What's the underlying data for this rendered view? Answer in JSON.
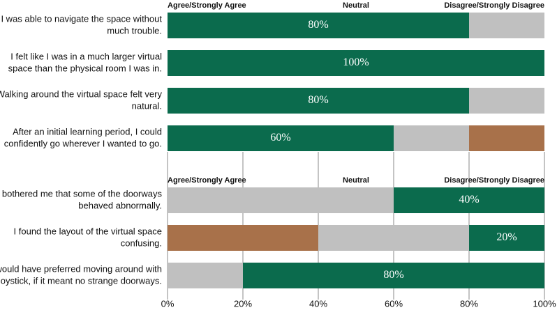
{
  "chart_data": [
    {
      "type": "bar",
      "orientation": "horizontal",
      "stacked": true,
      "categories": [
        [
          "I was able to navigate the space without",
          "much trouble."
        ],
        [
          "I felt like I was in a much larger virtual",
          "space than the physical room I was in."
        ],
        [
          "Walking around the virtual space felt very",
          "natural."
        ],
        [
          "After an initial learning period, I could",
          "confidently go wherever I wanted to go."
        ]
      ],
      "series": [
        {
          "name": "Agree/Strongly Agree",
          "color": "#0b6b4d",
          "values": [
            80,
            100,
            80,
            60
          ],
          "value_labels": [
            "80%",
            "100%",
            "80%",
            "60%"
          ]
        },
        {
          "name": "Neutral",
          "color": "#c0c0c0",
          "values": [
            20,
            0,
            20,
            20
          ],
          "value_labels": [
            null,
            null,
            null,
            null
          ]
        },
        {
          "name": "Disagree/Strongly Disagree",
          "color": "#a8714a",
          "values": [
            0,
            0,
            0,
            20
          ],
          "value_labels": [
            null,
            null,
            null,
            null
          ]
        }
      ],
      "xlim": [
        0,
        100
      ]
    },
    {
      "type": "bar",
      "orientation": "horizontal",
      "stacked": true,
      "categories": [
        [
          "It bothered me that some of the doorways",
          "behaved abnormally."
        ],
        [
          "I found the layout of the virtual space",
          "confusing."
        ],
        [
          "I would have preferred moving around with",
          "a joystick, if it meant no strange doorways."
        ]
      ],
      "series": [
        {
          "name": "Agree/Strongly Agree",
          "color": "#a8714a",
          "values": [
            0,
            40,
            0
          ],
          "value_labels": [
            null,
            null,
            null
          ]
        },
        {
          "name": "Neutral",
          "color": "#c0c0c0",
          "values": [
            60,
            40,
            20
          ],
          "value_labels": [
            null,
            null,
            null
          ]
        },
        {
          "name": "Disagree/Strongly Disagree",
          "color": "#0b6b4d",
          "values": [
            40,
            20,
            80
          ],
          "value_labels": [
            "40%",
            "20%",
            "80%"
          ]
        }
      ],
      "xlim": [
        0,
        100
      ],
      "xticks": [
        {
          "value": 0,
          "label": "0%"
        },
        {
          "value": 20,
          "label": "20%"
        },
        {
          "value": 40,
          "label": "40%"
        },
        {
          "value": 60,
          "label": "60%"
        },
        {
          "value": 80,
          "label": "80%"
        },
        {
          "value": 100,
          "label": "100%"
        }
      ],
      "grid": true
    }
  ]
}
